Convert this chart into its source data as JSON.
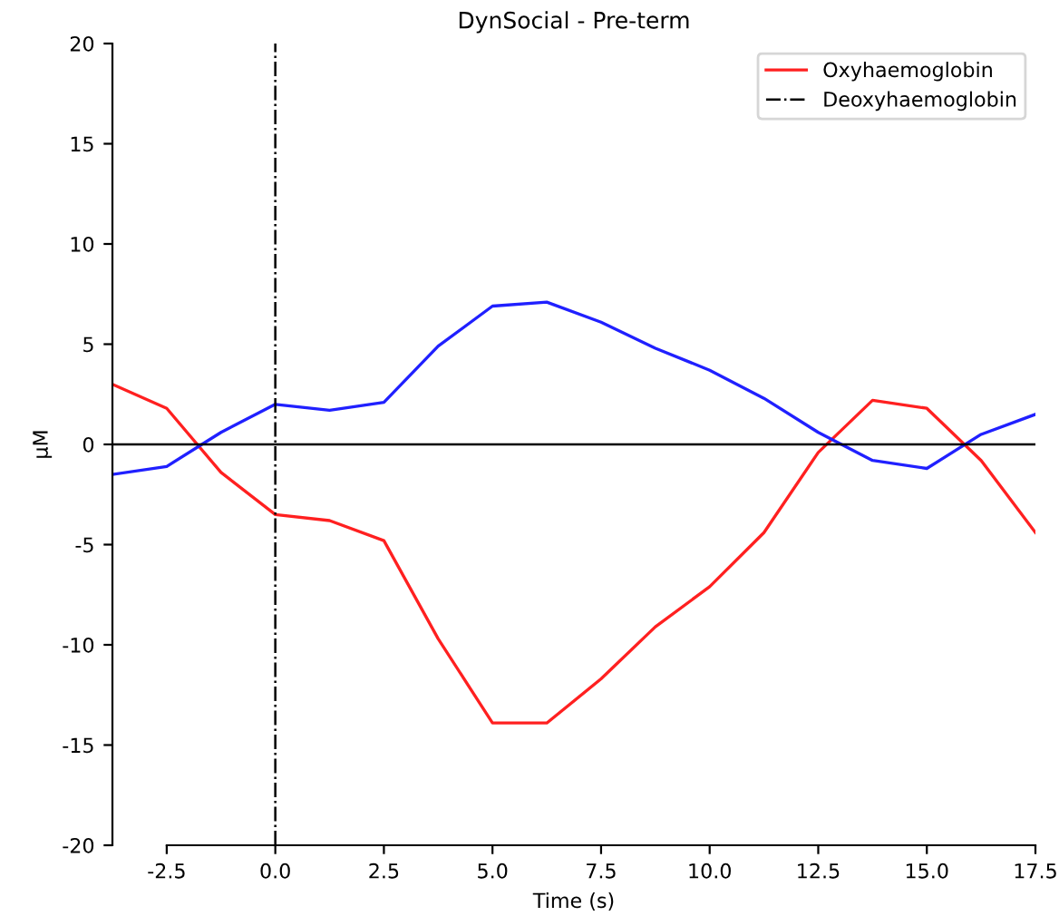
{
  "chart_data": {
    "type": "line",
    "title": "DynSocial - Pre-term",
    "xlabel": "Time (s)",
    "ylabel": "μM",
    "x": [
      -3.75,
      -2.5,
      -1.25,
      0,
      1.25,
      2.5,
      3.75,
      5,
      6.25,
      7.5,
      8.75,
      10,
      11.25,
      12.5,
      13.75,
      15,
      16.25,
      17.5
    ],
    "series": [
      {
        "name": "Oxyhaemoglobin",
        "color": "#ff2020",
        "values": [
          3.0,
          1.8,
          -1.4,
          -3.5,
          -3.8,
          -4.8,
          -9.7,
          -13.9,
          -13.9,
          -11.7,
          -9.1,
          -7.1,
          -4.4,
          -0.4,
          2.2,
          1.8,
          -0.8,
          -4.4
        ]
      },
      {
        "color": "#2020ff",
        "values": [
          -1.5,
          -1.1,
          0.6,
          2.0,
          1.7,
          2.1,
          4.9,
          6.9,
          7.1,
          6.1,
          4.8,
          3.7,
          2.3,
          0.6,
          -0.8,
          -1.2,
          0.5,
          1.5
        ]
      }
    ],
    "ref_lines": [
      {
        "axis": "x",
        "value": 0,
        "label": "Deoxyhaemoglobin",
        "color": "#000000",
        "line_style": "dashdot"
      },
      {
        "axis": "y",
        "value": 0,
        "color": "#000000",
        "line_style": "solid"
      }
    ],
    "xlim": [
      -3.75,
      17.5
    ],
    "xticks": [
      -2.5,
      {
        "value": 0,
        "label": "0.0"
      },
      2.5,
      {
        "value": 5,
        "label": "5.0"
      },
      7.5,
      {
        "value": 10,
        "label": "10.0"
      },
      12.5,
      {
        "value": 15,
        "label": "15.0"
      },
      17.5
    ],
    "ylim": [
      -20,
      20
    ],
    "yticks": [
      -20,
      -15,
      -10,
      -5,
      0,
      5,
      10,
      15,
      20
    ],
    "legend": "top right",
    "grid": false
  }
}
